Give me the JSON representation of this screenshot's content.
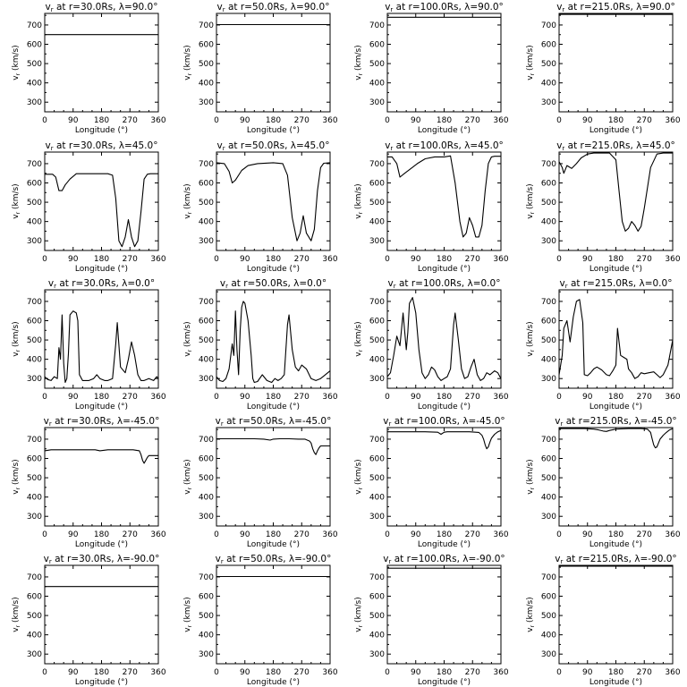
{
  "figure": {
    "axis_common": {
      "xlabel": "Longitude (°)",
      "ylabel": "v_r (km/s)",
      "xlim": [
        0,
        360
      ],
      "ylim": [
        250,
        760
      ],
      "xticks": [
        "0",
        "90",
        "180",
        "270",
        "360"
      ],
      "yticks": [
        "300",
        "400",
        "500",
        "600",
        "700"
      ]
    }
  },
  "chart_data": [
    {
      "type": "line",
      "title_prefix": "v",
      "title_sub": "r",
      "title_rest": " at r=30.0Rs, λ=90.0°",
      "x": [
        0,
        360
      ],
      "y": [
        650,
        650
      ]
    },
    {
      "type": "line",
      "title_prefix": "v",
      "title_sub": "r",
      "title_rest": " at r=50.0Rs, λ=90.0°",
      "x": [
        0,
        360
      ],
      "y": [
        702,
        702
      ]
    },
    {
      "type": "line",
      "title_prefix": "v",
      "title_sub": "r",
      "title_rest": " at r=100.0Rs, λ=90.0°",
      "x": [
        0,
        360
      ],
      "y": [
        740,
        740
      ]
    },
    {
      "type": "line",
      "title_prefix": "v",
      "title_sub": "r",
      "title_rest": " at r=215.0Rs, λ=90.0°",
      "x": [
        0,
        360
      ],
      "y": [
        755,
        755
      ]
    },
    {
      "type": "line",
      "title_prefix": "v",
      "title_sub": "r",
      "title_rest": " at r=30.0Rs, λ=45.0°",
      "x": [
        0,
        25,
        35,
        45,
        55,
        65,
        80,
        100,
        160,
        200,
        215,
        225,
        235,
        245,
        255,
        265,
        275,
        285,
        295,
        305,
        315,
        325,
        335,
        360
      ],
      "y": [
        645,
        645,
        630,
        560,
        560,
        590,
        620,
        648,
        648,
        648,
        640,
        520,
        300,
        270,
        320,
        410,
        320,
        270,
        300,
        450,
        620,
        645,
        648,
        648
      ]
    },
    {
      "type": "line",
      "title_prefix": "v",
      "title_sub": "r",
      "title_rest": " at r=50.0Rs, λ=45.0°",
      "x": [
        0,
        25,
        40,
        50,
        60,
        80,
        100,
        130,
        180,
        210,
        225,
        240,
        255,
        265,
        275,
        285,
        300,
        310,
        320,
        330,
        340,
        360
      ],
      "y": [
        705,
        700,
        660,
        600,
        615,
        665,
        690,
        700,
        705,
        700,
        640,
        420,
        300,
        340,
        430,
        340,
        300,
        360,
        560,
        680,
        702,
        705
      ]
    },
    {
      "type": "line",
      "title_prefix": "v",
      "title_sub": "r",
      "title_rest": " at r=100.0Rs, λ=45.0°",
      "x": [
        0,
        15,
        30,
        40,
        55,
        75,
        95,
        120,
        150,
        180,
        200,
        215,
        230,
        240,
        250,
        260,
        270,
        280,
        290,
        300,
        310,
        320,
        330,
        340,
        360
      ],
      "y": [
        735,
        735,
        700,
        630,
        650,
        675,
        700,
        725,
        735,
        735,
        740,
        600,
        400,
        320,
        340,
        420,
        380,
        320,
        320,
        380,
        560,
        700,
        735,
        738,
        738
      ]
    },
    {
      "type": "line",
      "title_prefix": "v",
      "title_sub": "r",
      "title_rest": " at r=215.0Rs, λ=45.0°",
      "x": [
        0,
        10,
        15,
        25,
        40,
        55,
        70,
        90,
        110,
        130,
        160,
        180,
        190,
        200,
        210,
        220,
        230,
        240,
        250,
        260,
        270,
        290,
        310,
        330,
        360
      ],
      "y": [
        710,
        680,
        650,
        690,
        675,
        700,
        730,
        750,
        755,
        755,
        755,
        720,
        560,
        400,
        350,
        365,
        400,
        380,
        350,
        375,
        470,
        680,
        750,
        755,
        755
      ]
    },
    {
      "type": "line",
      "title_prefix": "v",
      "title_sub": "r",
      "title_rest": " at r=30.0Rs, λ=0.0°",
      "x": [
        0,
        10,
        20,
        30,
        40,
        45,
        50,
        55,
        60,
        65,
        70,
        75,
        80,
        90,
        100,
        105,
        110,
        120,
        140,
        155,
        165,
        175,
        190,
        200,
        215,
        225,
        230,
        240,
        255,
        265,
        275,
        285,
        295,
        305,
        315,
        330,
        345,
        355,
        360
      ],
      "y": [
        310,
        295,
        290,
        310,
        300,
        460,
        400,
        630,
        380,
        280,
        300,
        430,
        630,
        650,
        640,
        600,
        320,
        290,
        290,
        300,
        320,
        300,
        290,
        290,
        300,
        480,
        590,
        360,
        330,
        400,
        490,
        420,
        320,
        290,
        290,
        300,
        290,
        310,
        300
      ]
    },
    {
      "type": "line",
      "title_prefix": "v",
      "title_sub": "r",
      "title_rest": " at r=50.0Rs, λ=0.0°",
      "x": [
        0,
        10,
        20,
        30,
        40,
        50,
        55,
        60,
        65,
        70,
        75,
        80,
        85,
        90,
        100,
        110,
        115,
        120,
        130,
        145,
        160,
        175,
        185,
        195,
        205,
        215,
        225,
        230,
        240,
        250,
        260,
        270,
        285,
        300,
        315,
        330,
        345,
        360
      ],
      "y": [
        310,
        290,
        285,
        300,
        350,
        480,
        420,
        650,
        450,
        320,
        550,
        670,
        700,
        690,
        600,
        420,
        300,
        280,
        285,
        320,
        290,
        280,
        300,
        290,
        300,
        320,
        580,
        630,
        450,
        360,
        340,
        370,
        350,
        300,
        290,
        300,
        320,
        340
      ]
    },
    {
      "type": "line",
      "title_prefix": "v",
      "title_sub": "r",
      "title_rest": " at r=100.0Rs, λ=0.0°",
      "x": [
        0,
        10,
        20,
        30,
        40,
        50,
        60,
        65,
        70,
        80,
        90,
        100,
        110,
        120,
        130,
        140,
        150,
        160,
        170,
        180,
        190,
        200,
        210,
        215,
        225,
        235,
        245,
        255,
        265,
        275,
        285,
        295,
        305,
        315,
        325,
        340,
        350,
        360
      ],
      "y": [
        310,
        330,
        420,
        520,
        470,
        640,
        450,
        540,
        690,
        720,
        640,
        450,
        330,
        300,
        320,
        360,
        345,
        310,
        290,
        300,
        310,
        350,
        580,
        640,
        500,
        350,
        300,
        310,
        360,
        400,
        320,
        290,
        300,
        330,
        320,
        340,
        330,
        300
      ]
    },
    {
      "type": "line",
      "title_prefix": "v",
      "title_sub": "r",
      "title_rest": " at r=215.0Rs, λ=0.0°",
      "x": [
        0,
        10,
        15,
        25,
        35,
        45,
        55,
        65,
        75,
        80,
        90,
        100,
        110,
        120,
        135,
        150,
        160,
        170,
        180,
        185,
        195,
        205,
        215,
        220,
        230,
        240,
        250,
        260,
        270,
        285,
        300,
        310,
        320,
        330,
        345,
        360
      ],
      "y": [
        320,
        420,
        560,
        600,
        490,
        620,
        700,
        710,
        590,
        320,
        315,
        330,
        350,
        360,
        345,
        320,
        315,
        340,
        370,
        560,
        420,
        410,
        400,
        350,
        330,
        300,
        310,
        330,
        325,
        330,
        335,
        320,
        305,
        320,
        370,
        500
      ]
    },
    {
      "type": "line",
      "title_prefix": "v",
      "title_sub": "r",
      "title_rest": " at r=30.0Rs, λ=-45.0°",
      "x": [
        0,
        20,
        40,
        80,
        120,
        160,
        175,
        200,
        220,
        240,
        260,
        280,
        300,
        305,
        310,
        315,
        320,
        325,
        330,
        340,
        360
      ],
      "y": [
        640,
        645,
        645,
        645,
        645,
        645,
        640,
        645,
        645,
        645,
        645,
        645,
        640,
        620,
        590,
        575,
        590,
        605,
        615,
        615,
        615
      ]
    },
    {
      "type": "line",
      "title_prefix": "v",
      "title_sub": "r",
      "title_rest": " at r=50.0Rs, λ=-45.0°",
      "x": [
        0,
        40,
        80,
        120,
        150,
        170,
        180,
        200,
        230,
        260,
        280,
        295,
        300,
        305,
        310,
        315,
        320,
        325,
        330,
        340,
        360
      ],
      "y": [
        702,
        702,
        702,
        702,
        700,
        695,
        700,
        702,
        702,
        700,
        700,
        690,
        680,
        650,
        630,
        620,
        640,
        655,
        665,
        665,
        665
      ]
    },
    {
      "type": "line",
      "title_prefix": "v",
      "title_sub": "r",
      "title_rest": " at r=100.0Rs, λ=-45.0°",
      "x": [
        0,
        60,
        120,
        160,
        170,
        180,
        190,
        220,
        260,
        290,
        300,
        305,
        310,
        315,
        320,
        325,
        330,
        340,
        350,
        360
      ],
      "y": [
        738,
        738,
        738,
        736,
        725,
        736,
        738,
        738,
        738,
        735,
        720,
        700,
        670,
        650,
        660,
        685,
        705,
        725,
        738,
        745
      ]
    },
    {
      "type": "line",
      "title_prefix": "v",
      "title_sub": "r",
      "title_rest": " at r=215.0Rs, λ=-45.0°",
      "x": [
        0,
        40,
        80,
        110,
        125,
        140,
        150,
        160,
        180,
        220,
        260,
        280,
        290,
        295,
        300,
        305,
        310,
        315,
        320,
        330,
        340,
        350,
        360
      ],
      "y": [
        755,
        755,
        755,
        752,
        748,
        742,
        740,
        745,
        752,
        755,
        755,
        752,
        735,
        700,
        670,
        655,
        660,
        680,
        700,
        720,
        735,
        748,
        755
      ]
    },
    {
      "type": "line",
      "title_prefix": "v",
      "title_sub": "r",
      "title_rest": " at r=30.0Rs, λ=-90.0°",
      "x": [
        0,
        360
      ],
      "y": [
        650,
        650
      ]
    },
    {
      "type": "line",
      "title_prefix": "v",
      "title_sub": "r",
      "title_rest": " at r=50.0Rs, λ=-90.0°",
      "x": [
        0,
        360
      ],
      "y": [
        702,
        702
      ]
    },
    {
      "type": "line",
      "title_prefix": "v",
      "title_sub": "r",
      "title_rest": " at r=100.0Rs, λ=-90.0°",
      "x": [
        0,
        360
      ],
      "y": [
        745,
        745
      ]
    },
    {
      "type": "line",
      "title_prefix": "v",
      "title_sub": "r",
      "title_rest": " at r=215.0Rs, λ=-90.0°",
      "x": [
        0,
        360
      ],
      "y": [
        756,
        756
      ]
    }
  ]
}
